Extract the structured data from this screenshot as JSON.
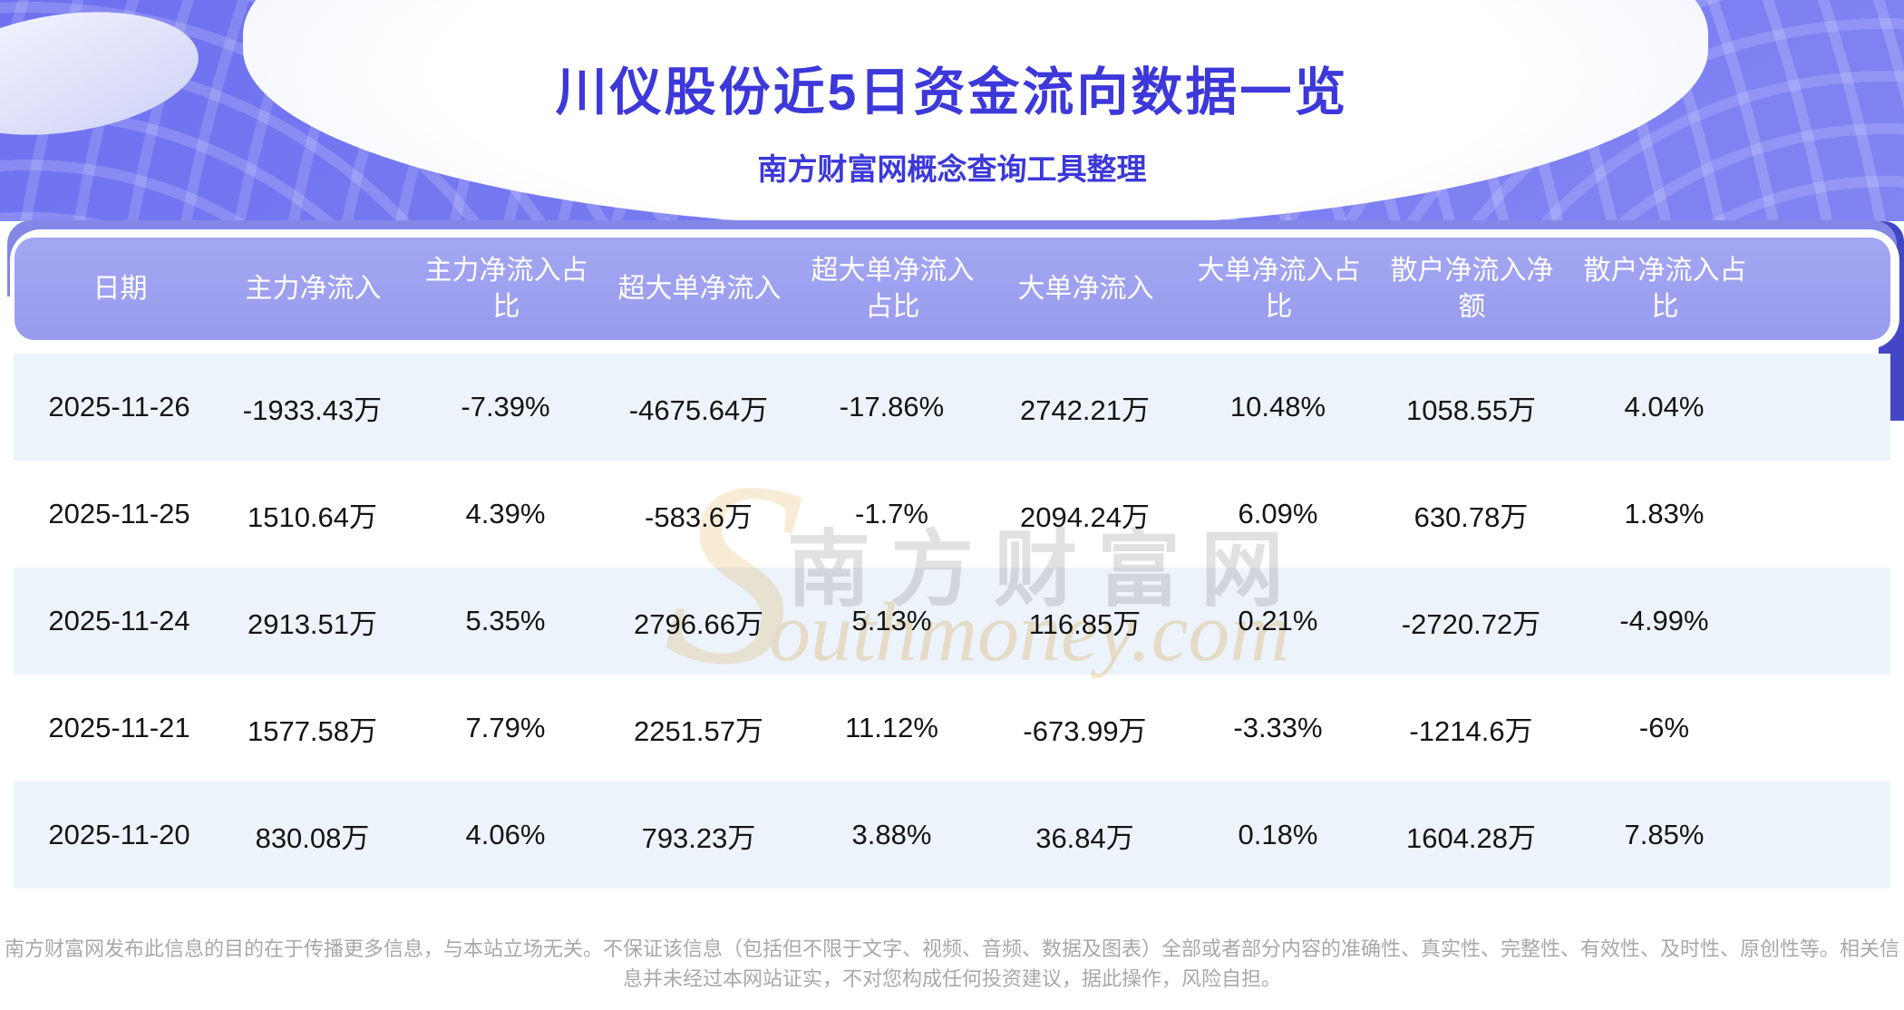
{
  "chart_data": {
    "type": "table",
    "title": "川仪股份近5日资金流向数据一览",
    "subtitle": "南方财富网概念查询工具整理",
    "columns": [
      "日期",
      "主力净流入",
      "主力净流入占比",
      "超大单净流入",
      "超大单净流入占比",
      "大单净流入",
      "大单净流入占比",
      "散户净流入净额",
      "散户净流入占比"
    ],
    "rows": [
      [
        "2025-11-26",
        "-1933.43万",
        "-7.39%",
        "-4675.64万",
        "-17.86%",
        "2742.21万",
        "10.48%",
        "1058.55万",
        "4.04%"
      ],
      [
        "2025-11-25",
        "1510.64万",
        "4.39%",
        "-583.6万",
        "-1.7%",
        "2094.24万",
        "6.09%",
        "630.78万",
        "1.83%"
      ],
      [
        "2025-11-24",
        "2913.51万",
        "5.35%",
        "2796.66万",
        "5.13%",
        "116.85万",
        "0.21%",
        "-2720.72万",
        "-4.99%"
      ],
      [
        "2025-11-21",
        "1577.58万",
        "7.79%",
        "2251.57万",
        "11.12%",
        "-673.99万",
        "-3.33%",
        "-1214.6万",
        "-6%"
      ],
      [
        "2025-11-20",
        "830.08万",
        "4.06%",
        "793.23万",
        "3.88%",
        "36.84万",
        "0.18%",
        "1604.28万",
        "7.85%"
      ]
    ]
  },
  "watermark": {
    "swoosh": "S",
    "cjk": "南方财富网",
    "script": "outhmoney.com"
  },
  "footer": {
    "disclaimer": "南方财富网发布此信息的目的在于传播更多信息，与本站立场无关。不保证该信息（包括但不限于文字、视频、音频、数据及图表）全部或者部分内容的准确性、真实性、完整性、有效性、及时性、原创性等。相关信息并未经过本网站证实，不对您构成任何投资建议，据此操作，风险自担。"
  },
  "colors": {
    "banner_purple": "#6d71ef",
    "title_indigo": "#3c38da",
    "header_band": "#999cee",
    "dark_band": "#8387e7",
    "row_stripe": "#edf3fb",
    "footer_gray": "#a8a8a8",
    "watermark_cream": "#f7e6ca"
  }
}
